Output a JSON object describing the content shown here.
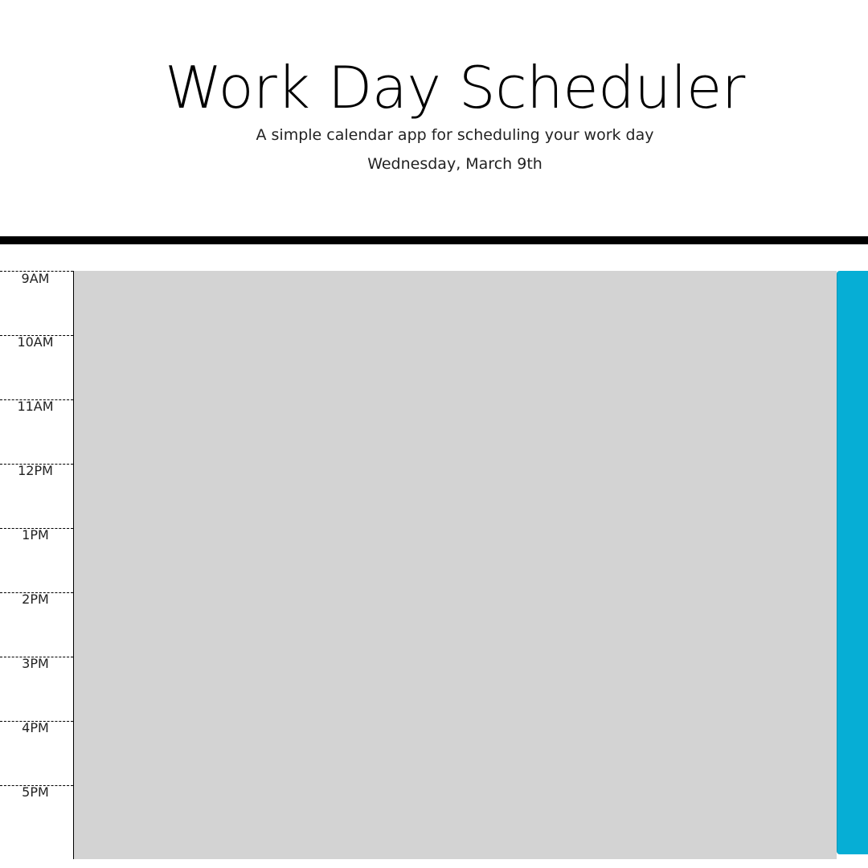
{
  "header": {
    "title": "Work Day Scheduler",
    "subtitle": "A simple calendar app for scheduling your work day",
    "current_day": "Wednesday, March 9th"
  },
  "colors": {
    "past": "#d3d3d3",
    "save_button": "#06aed5"
  },
  "time_blocks": [
    {
      "hour": "9AM",
      "description": ""
    },
    {
      "hour": "10AM",
      "description": ""
    },
    {
      "hour": "11AM",
      "description": ""
    },
    {
      "hour": "12PM",
      "description": ""
    },
    {
      "hour": "1PM",
      "description": ""
    },
    {
      "hour": "2PM",
      "description": ""
    },
    {
      "hour": "3PM",
      "description": ""
    },
    {
      "hour": "4PM",
      "description": ""
    },
    {
      "hour": "5PM",
      "description": ""
    }
  ]
}
